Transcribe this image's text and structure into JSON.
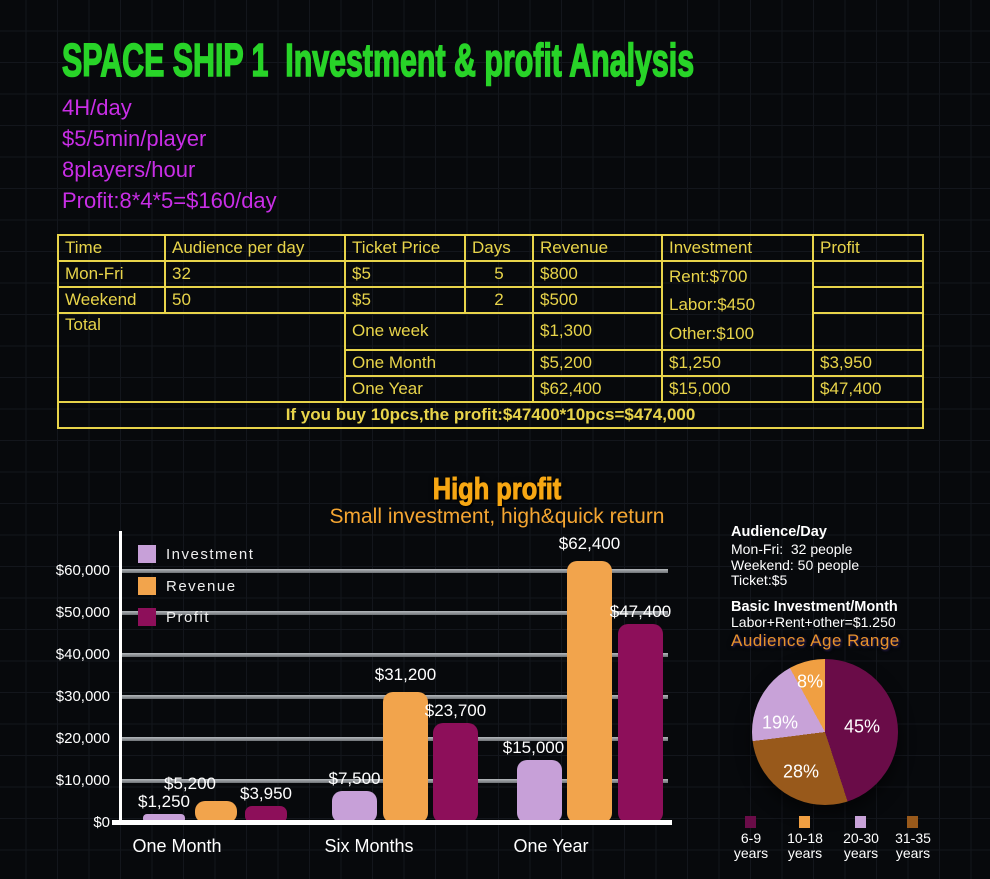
{
  "title": "SPACE SHIP 1  Investment & profit Analysis",
  "specs": [
    "4H/day",
    "$5/5min/player",
    "8players/hour",
    "Profit:8*4*5=$160/day"
  ],
  "table": {
    "headers": [
      "Time",
      "Audience per day",
      "Ticket Price",
      "Days",
      "Revenue",
      "Investment",
      "Profit"
    ],
    "mon_fri": {
      "time": "Mon-Fri",
      "audience": "32",
      "price": "$5",
      "days": "5",
      "revenue": "$800"
    },
    "weekend": {
      "time": "Weekend",
      "audience": "50",
      "price": "$5",
      "days": "2",
      "revenue": "$500"
    },
    "total_label": "Total",
    "one_week": {
      "period": "One week",
      "revenue": "$1,300"
    },
    "one_month": {
      "period": "One Month",
      "revenue": "$5,200",
      "investment": "$1,250",
      "profit": "$3,950"
    },
    "one_year": {
      "period": "One Year",
      "revenue": "$62,400",
      "investment": "$15,000",
      "profit": "$47,400"
    },
    "investment_lines": [
      "Rent:$700",
      "Labor:$450",
      "Other:$100"
    ],
    "footer": "If you buy 10pcs,the profit:$47400*10pcs=$474,000"
  },
  "chart_data": [
    {
      "type": "bar",
      "title": "High profit",
      "subtitle": "Small investment, high&quick return",
      "categories": [
        "One Month",
        "Six Months",
        "One Year"
      ],
      "series": [
        {
          "name": "Investment",
          "color": "#c7a0d8",
          "values": [
            1250,
            7500,
            15000
          ]
        },
        {
          "name": "Revenue",
          "color": "#f2a44c",
          "values": [
            5200,
            31200,
            62400
          ]
        },
        {
          "name": "Profit",
          "color": "#8d0f5a",
          "values": [
            3950,
            23700,
            47400
          ]
        }
      ],
      "value_labels": [
        [
          "$1,250",
          "$7,500",
          "$15,000"
        ],
        [
          "$5,200",
          "$31,200",
          "$62,400"
        ],
        [
          "$3,950",
          "$23,700",
          "$47,400"
        ]
      ],
      "y_axis": {
        "min": 0,
        "max": 60000,
        "step": 10000,
        "tick_prefix": "$"
      },
      "legend_position": "top-left",
      "grid": true
    },
    {
      "type": "pie",
      "title": "Audience Age Range",
      "segments": [
        {
          "label": "6-9 years",
          "value": 45,
          "color": "#6a0c48"
        },
        {
          "label": "10-18 years",
          "value": 8,
          "color": "#f09f42"
        },
        {
          "label": "20-30 years",
          "value": 19,
          "color": "#c8a2d8"
        },
        {
          "label": "31-35 years",
          "value": 28,
          "color": "#98591b"
        }
      ],
      "draw_order": [
        0,
        3,
        2,
        1
      ],
      "slice_labels": [
        "45%",
        "8%",
        "19%",
        "28%"
      ]
    }
  ],
  "side_panel": {
    "audience_title": "Audience/Day",
    "audience_lines": [
      "Mon-Fri:  32 people",
      "Weekend: 50 people",
      "Ticket:$5"
    ],
    "invest_title": "Basic Investment/Month",
    "invest_line": "Labor+Rent+other=$1.250"
  }
}
